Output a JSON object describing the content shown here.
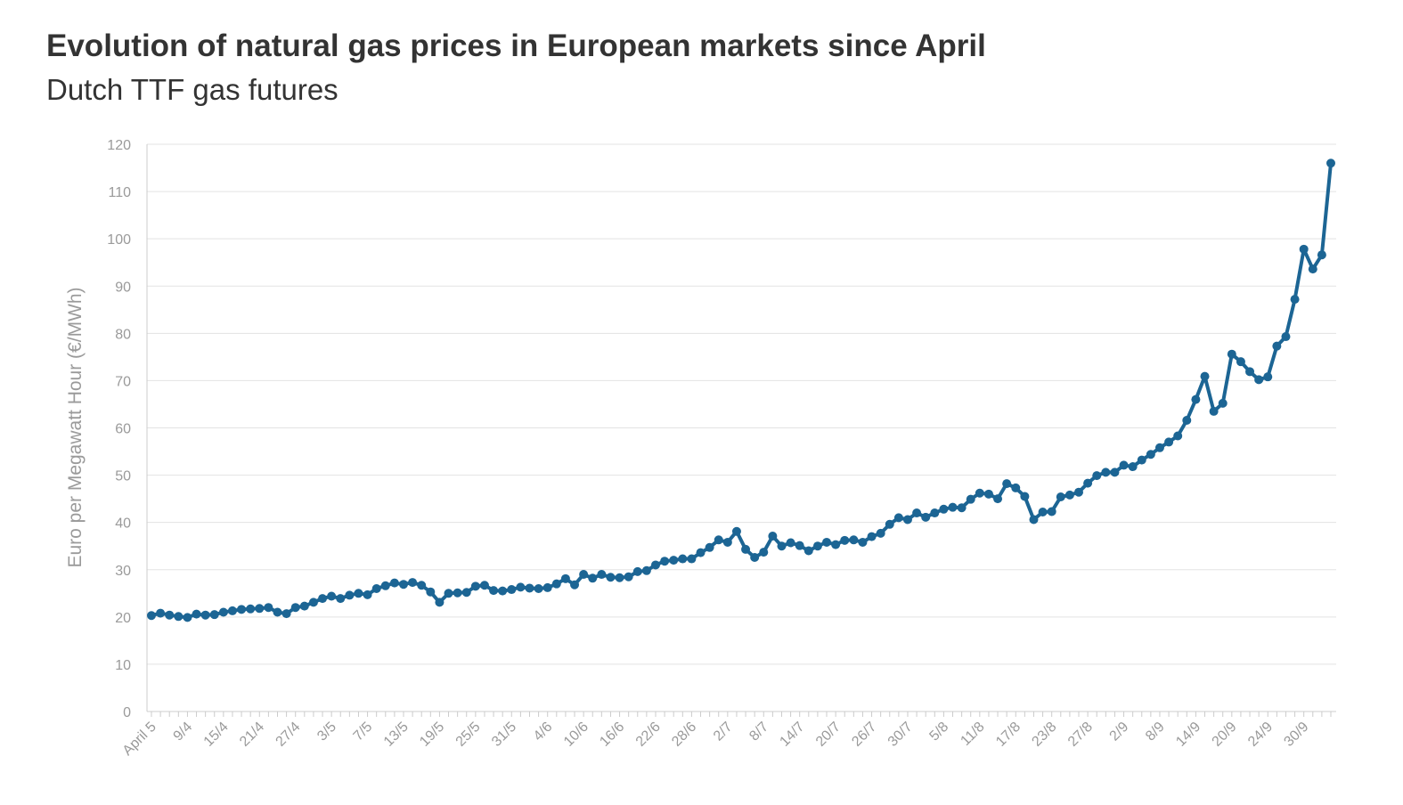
{
  "header": {
    "title": "Evolution of natural gas prices in European markets since April",
    "subtitle": "Dutch TTF gas futures"
  },
  "chart_data": {
    "type": "line",
    "title": "Evolution of natural gas prices in European markets since April",
    "subtitle": "Dutch TTF gas futures",
    "xlabel": "",
    "ylabel": "Euro per Megawatt Hour (€/MWh)",
    "ylim": [
      0,
      120
    ],
    "yticks": [
      0,
      10,
      20,
      30,
      40,
      50,
      60,
      70,
      80,
      90,
      100,
      110,
      120
    ],
    "xtick_labels": [
      "April 5",
      "9/4",
      "15/4",
      "21/4",
      "27/4",
      "3/5",
      "7/5",
      "13/5",
      "19/5",
      "25/5",
      "31/5",
      "4/6",
      "10/6",
      "16/6",
      "22/6",
      "28/6",
      "2/7",
      "8/7",
      "14/7",
      "20/7",
      "26/7",
      "30/7",
      "5/8",
      "11/8",
      "17/8",
      "23/8",
      "27/8",
      "2/9",
      "8/9",
      "14/9",
      "20/9",
      "24/9",
      "30/9"
    ],
    "grid": true,
    "legend": "none",
    "line_color": "#1c6594",
    "series": [
      {
        "values": [
          20.3,
          20.8,
          20.4,
          20.1,
          19.9,
          20.6,
          20.4,
          20.5,
          21.0,
          21.3,
          21.6,
          21.7,
          21.8,
          22.0,
          21.0,
          20.7,
          22.0,
          22.3,
          23.1,
          23.9,
          24.4,
          23.9,
          24.6,
          25.0,
          24.7,
          26.0,
          26.6,
          27.2,
          26.9,
          27.3,
          26.7,
          25.3,
          23.1,
          25.0,
          25.1,
          25.2,
          26.5,
          26.7,
          25.6,
          25.5,
          25.8,
          26.3,
          26.1,
          26.0,
          26.2,
          27.0,
          28.1,
          26.8,
          29.0,
          28.2,
          29.0,
          28.4,
          28.3,
          28.5,
          29.6,
          29.8,
          31.0,
          31.8,
          32.0,
          32.3,
          32.3,
          33.6,
          34.7,
          36.3,
          35.8,
          38.1,
          34.3,
          32.6,
          33.7,
          37.1,
          35.0,
          35.7,
          35.1,
          34.0,
          35.0,
          35.8,
          35.3,
          36.2,
          36.3,
          35.8,
          37.0,
          37.7,
          39.6,
          41.0,
          40.6,
          42.0,
          41.1,
          42.0,
          42.8,
          43.2,
          43.1,
          44.9,
          46.2,
          46.0,
          45.0,
          48.2,
          47.3,
          45.5,
          40.6,
          42.2,
          42.3,
          45.4,
          45.8,
          46.4,
          48.3,
          49.9,
          50.6,
          50.6,
          52.1,
          51.8,
          53.2,
          54.4,
          55.8,
          57.0,
          58.3,
          61.6,
          66.0,
          70.9,
          63.5,
          65.2,
          75.6,
          74.0,
          71.9,
          70.2,
          70.8,
          77.3,
          79.3,
          87.2,
          97.8,
          93.6,
          96.6,
          116.0
        ]
      }
    ]
  }
}
